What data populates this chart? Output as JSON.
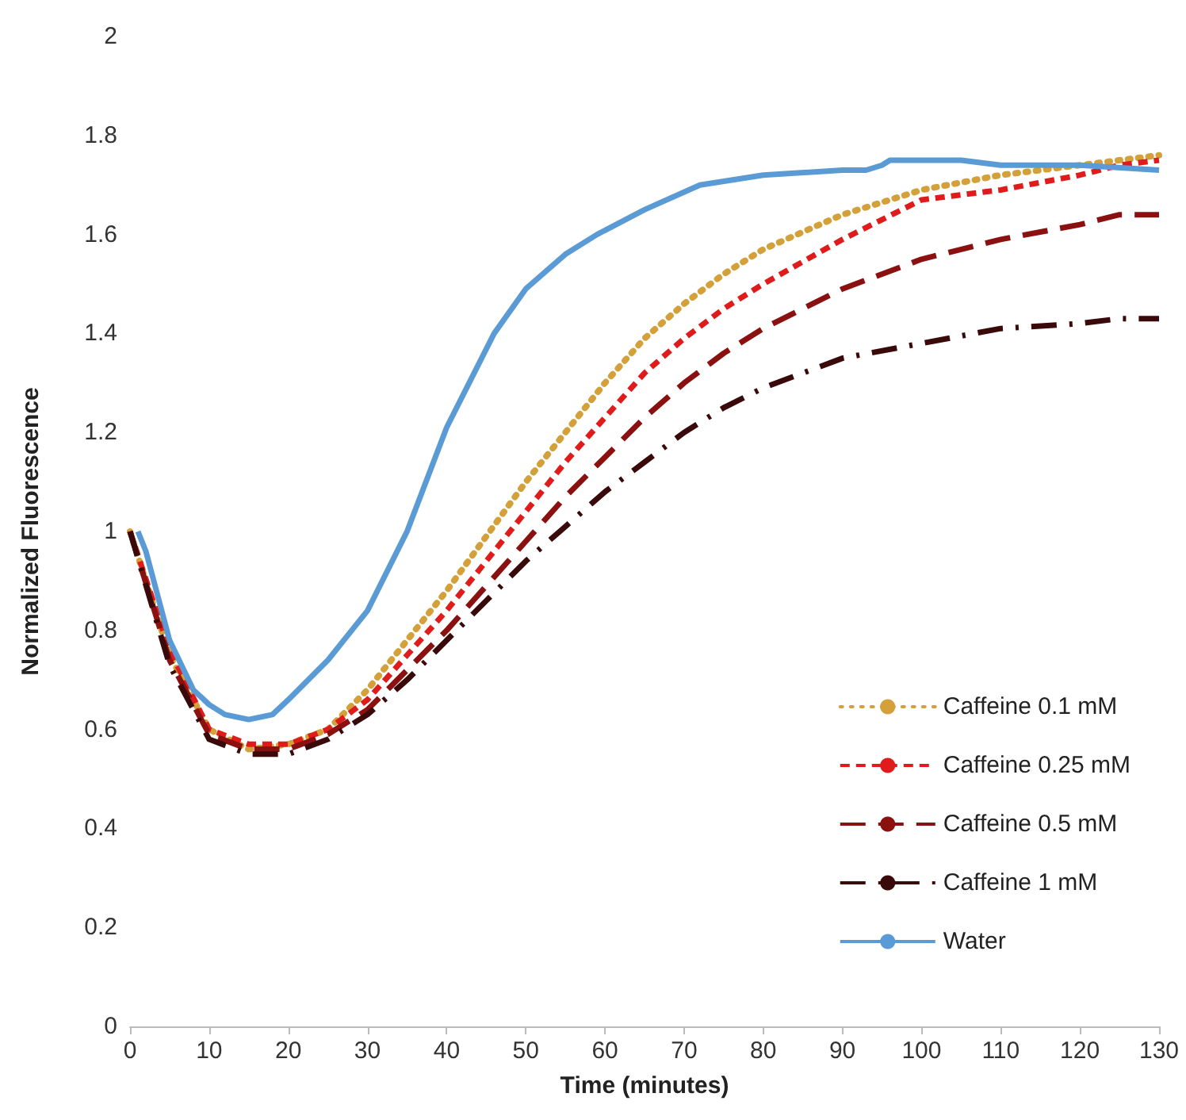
{
  "chart_data": {
    "type": "line",
    "xlabel": "Time (minutes)",
    "ylabel": "Normalized Fluorescence",
    "x": [
      0,
      5,
      10,
      15,
      20,
      25,
      30,
      35,
      40,
      45,
      50,
      55,
      60,
      65,
      70,
      75,
      80,
      90,
      100,
      110,
      120,
      125,
      130
    ],
    "series": [
      {
        "name": "Caffeine 0.1 mM",
        "color": "#d4a03a",
        "line_style": "dotted",
        "values": [
          1.0,
          0.75,
          0.6,
          0.56,
          0.57,
          0.6,
          0.68,
          0.78,
          0.88,
          0.99,
          1.1,
          1.2,
          1.3,
          1.39,
          1.46,
          1.52,
          1.57,
          1.64,
          1.69,
          1.72,
          1.74,
          1.75,
          1.76
        ]
      },
      {
        "name": "Caffeine 0.25 mM",
        "color": "#e01b1b",
        "line_style": "dashed",
        "values": [
          1.0,
          0.76,
          0.6,
          0.57,
          0.57,
          0.6,
          0.66,
          0.75,
          0.84,
          0.94,
          1.04,
          1.14,
          1.23,
          1.32,
          1.39,
          1.45,
          1.5,
          1.59,
          1.67,
          1.69,
          1.72,
          1.74,
          1.75
        ]
      },
      {
        "name": "Caffeine 0.5 mM",
        "color": "#8b1010",
        "line_style": "longdash",
        "values": [
          1.0,
          0.74,
          0.59,
          0.56,
          0.56,
          0.59,
          0.64,
          0.72,
          0.8,
          0.89,
          0.98,
          1.07,
          1.15,
          1.23,
          1.3,
          1.36,
          1.41,
          1.49,
          1.55,
          1.59,
          1.62,
          1.64,
          1.64
        ]
      },
      {
        "name": "Caffeine 1 mM",
        "color": "#3a0a0a",
        "line_style": "dashdot",
        "values": [
          1.0,
          0.73,
          0.58,
          0.55,
          0.55,
          0.58,
          0.63,
          0.7,
          0.78,
          0.86,
          0.94,
          1.01,
          1.08,
          1.14,
          1.2,
          1.25,
          1.29,
          1.35,
          1.38,
          1.41,
          1.42,
          1.43,
          1.43
        ]
      },
      {
        "name": "Water",
        "color": "#5b9bd5",
        "line_style": "solid",
        "x": [
          1,
          2,
          5,
          8,
          10,
          12,
          15,
          18,
          20,
          25,
          30,
          35,
          40,
          46,
          50,
          55,
          59,
          65,
          72,
          80,
          90,
          93,
          95,
          96,
          100,
          105,
          110,
          120,
          130
        ],
        "values": [
          1.0,
          0.96,
          0.78,
          0.68,
          0.65,
          0.63,
          0.62,
          0.63,
          0.66,
          0.74,
          0.84,
          1.0,
          1.21,
          1.4,
          1.49,
          1.56,
          1.6,
          1.65,
          1.7,
          1.72,
          1.73,
          1.73,
          1.74,
          1.75,
          1.75,
          1.75,
          1.74,
          1.74,
          1.73
        ]
      }
    ],
    "xlim": [
      0,
      130
    ],
    "xticks": [
      0,
      10,
      20,
      30,
      40,
      50,
      60,
      70,
      80,
      90,
      100,
      110,
      120,
      130
    ],
    "ylim": [
      0,
      2
    ],
    "yticks": [
      0,
      0.2,
      0.4,
      0.6,
      0.8,
      1,
      1.2,
      1.4,
      1.6,
      1.8,
      2
    ],
    "grid": false,
    "legend": "bottom right",
    "marker": "none"
  }
}
